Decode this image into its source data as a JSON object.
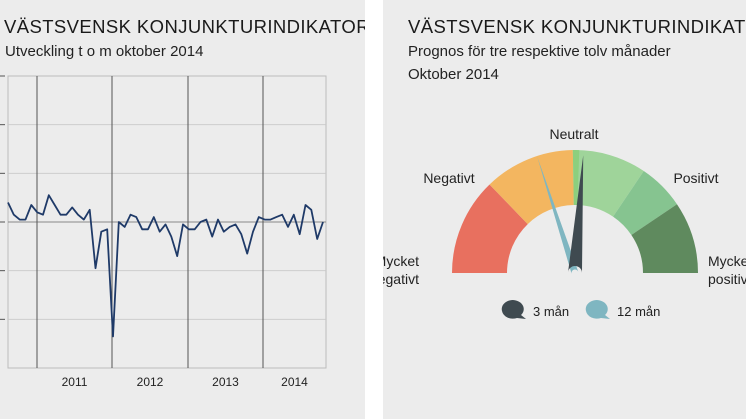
{
  "left_panel": {
    "title": "VÄSTSVENSK KONJUNKTURINDIKATOR",
    "subtitle": "Utveckling t o m oktober 2014"
  },
  "right_panel": {
    "title": "VÄSTSVENSK KONJUNKTURINDIKATOR",
    "subtitle": "Prognos för tre respektive tolv månader",
    "subtitle2": "Oktober 2014"
  },
  "chart_data": [
    {
      "type": "line",
      "title": "VÄSTSVENSK KONJUNKTURINDIKATOR",
      "subtitle": "Utveckling t o m oktober 2014",
      "xlabel": "",
      "ylabel": "",
      "x_tick_labels": [
        "2011",
        "2012",
        "2013",
        "2014"
      ],
      "x_start": "2010-10",
      "x_end": "2014-10",
      "ylim": [
        -3,
        3
      ],
      "yticks": [
        -3,
        -2,
        -1,
        0,
        1,
        2,
        3
      ],
      "grid": true,
      "series": [
        {
          "color": "#1f3a68",
          "values": [
            0.4,
            0.15,
            0.05,
            0.05,
            0.35,
            0.2,
            0.15,
            0.55,
            0.35,
            0.15,
            0.15,
            0.3,
            0.15,
            0.05,
            0.25,
            -0.95,
            -0.2,
            -0.15,
            -2.35,
            0.0,
            -0.1,
            0.15,
            0.1,
            -0.15,
            -0.15,
            0.1,
            -0.2,
            -0.05,
            -0.3,
            -0.7,
            -0.05,
            -0.15,
            -0.15,
            0.0,
            0.05,
            -0.3,
            0.05,
            -0.2,
            -0.1,
            -0.05,
            -0.25,
            -0.65,
            -0.2,
            0.1,
            0.05,
            0.05,
            0.1,
            0.15,
            -0.1,
            0.15,
            -0.25,
            0.35,
            0.25,
            -0.35,
            0.0
          ]
        }
      ]
    },
    {
      "type": "gauge",
      "title": "VÄSTSVENSK KONJUNKTURINDIKATOR",
      "subtitle": "Prognos för tre respektive tolv månader",
      "subtitle2": "Oktober 2014",
      "segments": [
        {
          "label": "Mycket negativt",
          "color": "#e8705f"
        },
        {
          "label": "Negativt",
          "color": "#f3b660"
        },
        {
          "label": "Neutralt",
          "color": "#9fd49a"
        },
        {
          "label": "Positivt",
          "color": "#86c490"
        },
        {
          "label": "Mycket positivt",
          "color": "#5f8a5e"
        }
      ],
      "series": [
        {
          "name": "3 mån",
          "color": "#3f4a50",
          "value_deg": 94
        },
        {
          "name": "12 mån",
          "color": "#7fb6c1",
          "value_deg": 72
        }
      ],
      "needle_scale": "degrees from left (0) to right (180)"
    }
  ]
}
